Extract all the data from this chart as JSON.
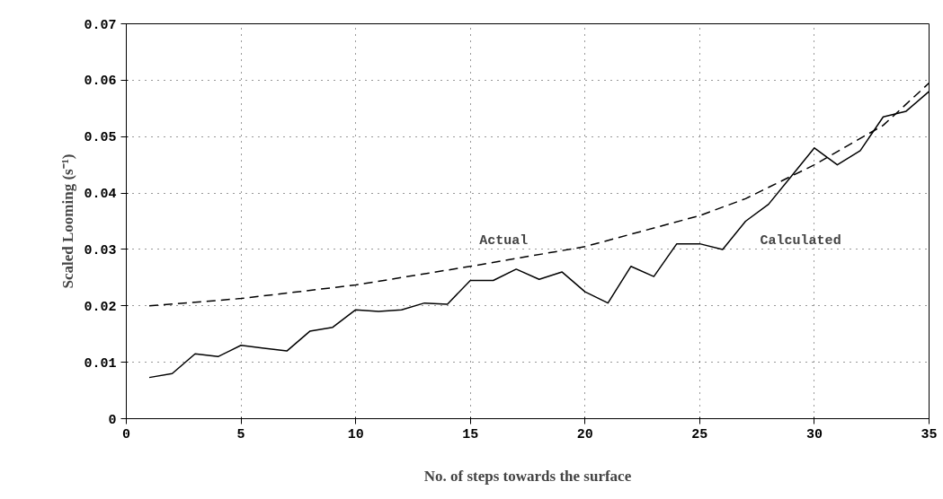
{
  "chart_data": {
    "type": "line",
    "xlabel": "No. of steps towards the surface",
    "ylabel": "Scaled Looming (s⁻¹)",
    "xlim": [
      0,
      35
    ],
    "xticks": [
      0,
      5,
      10,
      15,
      20,
      25,
      30,
      35
    ],
    "ylim": [
      0,
      0.07
    ],
    "yticks": [
      0,
      0.01,
      0.02,
      0.03,
      0.04,
      0.05,
      0.06,
      0.07
    ],
    "grid": true,
    "series": [
      {
        "color": "#000000",
        "line_style": "solid",
        "x": [
          1,
          2,
          3,
          4,
          5,
          6,
          7,
          8,
          9,
          10,
          11,
          12,
          13,
          14,
          15,
          16,
          17,
          18,
          19,
          20,
          21,
          22,
          23,
          24,
          25,
          26,
          27,
          28,
          29,
          30,
          31,
          32,
          33,
          34,
          35
        ],
        "values": [
          0.0073,
          0.008,
          0.0115,
          0.011,
          0.013,
          0.0125,
          0.012,
          0.0155,
          0.0162,
          0.0193,
          0.019,
          0.0193,
          0.0205,
          0.0203,
          0.0245,
          0.0245,
          0.0265,
          0.0247,
          0.026,
          0.0225,
          0.0205,
          0.027,
          0.0252,
          0.031,
          0.031,
          0.03,
          0.035,
          0.038,
          0.043,
          0.048,
          0.045,
          0.0475,
          0.0535,
          0.0545,
          0.058
        ]
      },
      {
        "color": "#000000",
        "line_style": "dashed",
        "x": [
          1,
          5,
          10,
          15,
          20,
          25,
          27,
          30,
          33,
          35
        ],
        "values": [
          0.02,
          0.0213,
          0.0237,
          0.027,
          0.0305,
          0.036,
          0.039,
          0.045,
          0.052,
          0.0595
        ]
      }
    ],
    "annotations": [
      "Actual",
      "Calculated"
    ]
  }
}
